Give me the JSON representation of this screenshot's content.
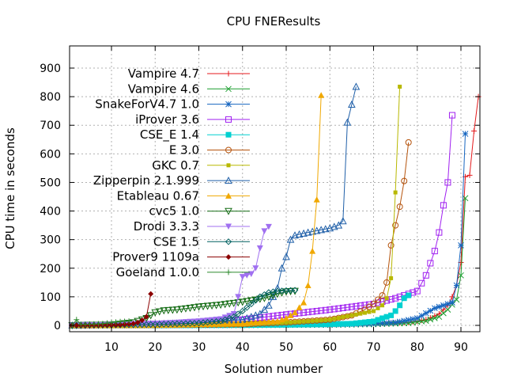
{
  "chart_data": {
    "type": "line",
    "title": "CPU FNEResults",
    "xlabel": "Solution number",
    "ylabel": "CPU time in seconds",
    "xlim": [
      0,
      95
    ],
    "ylim": [
      -20,
      980
    ],
    "xticks": [
      10,
      20,
      30,
      40,
      50,
      60,
      70,
      80,
      90
    ],
    "yticks": [
      0,
      100,
      200,
      300,
      400,
      500,
      600,
      700,
      800,
      900
    ],
    "grid": true,
    "legend_position": "top-left",
    "series": [
      {
        "name": "Vampire 4.7",
        "color": "#e41a1c",
        "marker": "plus",
        "points": [
          [
            1,
            0
          ],
          [
            20,
            0
          ],
          [
            40,
            1
          ],
          [
            60,
            3
          ],
          [
            70,
            6
          ],
          [
            78,
            10
          ],
          [
            82,
            20
          ],
          [
            85,
            40
          ],
          [
            87,
            70
          ],
          [
            88,
            100
          ],
          [
            89,
            140
          ],
          [
            90,
            220
          ],
          [
            91,
            520
          ],
          [
            92,
            525
          ],
          [
            93,
            680
          ],
          [
            94,
            800
          ]
        ]
      },
      {
        "name": "Vampire 4.6",
        "color": "#1a9e2e",
        "marker": "x",
        "points": [
          [
            1,
            0
          ],
          [
            20,
            0
          ],
          [
            40,
            1
          ],
          [
            60,
            2
          ],
          [
            70,
            4
          ],
          [
            78,
            8
          ],
          [
            82,
            16
          ],
          [
            85,
            30
          ],
          [
            87,
            55
          ],
          [
            89,
            90
          ],
          [
            90,
            175
          ],
          [
            91,
            445
          ]
        ]
      },
      {
        "name": "SnakeForV4.7 1.0",
        "color": "#1565c0",
        "marker": "asterisk",
        "points": [
          [
            1,
            0
          ],
          [
            20,
            0
          ],
          [
            40,
            1
          ],
          [
            60,
            3
          ],
          [
            70,
            6
          ],
          [
            75,
            10
          ],
          [
            80,
            25
          ],
          [
            84,
            60
          ],
          [
            86,
            70
          ],
          [
            88,
            80
          ],
          [
            89,
            140
          ],
          [
            90,
            280
          ],
          [
            91,
            670
          ]
        ]
      },
      {
        "name": "iProver 3.6",
        "color": "#a020f0",
        "marker": "square",
        "points": [
          [
            1,
            0
          ],
          [
            10,
            2
          ],
          [
            20,
            5
          ],
          [
            30,
            10
          ],
          [
            40,
            20
          ],
          [
            50,
            38
          ],
          [
            60,
            55
          ],
          [
            65,
            65
          ],
          [
            70,
            75
          ],
          [
            75,
            95
          ],
          [
            78,
            110
          ],
          [
            80,
            120
          ],
          [
            82,
            175
          ],
          [
            84,
            260
          ],
          [
            85,
            325
          ],
          [
            86,
            420
          ],
          [
            87,
            500
          ],
          [
            88,
            735
          ]
        ]
      },
      {
        "name": "CSE_E 1.4",
        "color": "#00d0d0",
        "marker": "filled-square",
        "points": [
          [
            1,
            0
          ],
          [
            20,
            0
          ],
          [
            40,
            1
          ],
          [
            50,
            2
          ],
          [
            60,
            4
          ],
          [
            65,
            6
          ],
          [
            70,
            14
          ],
          [
            72,
            25
          ],
          [
            74,
            35
          ],
          [
            75,
            50
          ],
          [
            76,
            70
          ],
          [
            77,
            95
          ],
          [
            78,
            105
          ]
        ]
      },
      {
        "name": "E 3.0",
        "color": "#b5530c",
        "marker": "circle",
        "points": [
          [
            1,
            0
          ],
          [
            20,
            1
          ],
          [
            40,
            4
          ],
          [
            50,
            10
          ],
          [
            60,
            20
          ],
          [
            65,
            35
          ],
          [
            68,
            55
          ],
          [
            70,
            75
          ],
          [
            72,
            105
          ],
          [
            73,
            150
          ],
          [
            74,
            280
          ],
          [
            75,
            350
          ],
          [
            76,
            415
          ],
          [
            77,
            505
          ],
          [
            78,
            640
          ]
        ]
      },
      {
        "name": "GKC 0.7",
        "color": "#b8b800",
        "marker": "filled-square-small",
        "points": [
          [
            1,
            0
          ],
          [
            20,
            1
          ],
          [
            30,
            2
          ],
          [
            40,
            5
          ],
          [
            50,
            10
          ],
          [
            60,
            20
          ],
          [
            65,
            35
          ],
          [
            70,
            50
          ],
          [
            72,
            70
          ],
          [
            73,
            95
          ],
          [
            74,
            165
          ],
          [
            75,
            465
          ],
          [
            76,
            835
          ]
        ]
      },
      {
        "name": "Zipperpin 2.1.999",
        "color": "#1f5fa8",
        "marker": "triangle",
        "points": [
          [
            1,
            0
          ],
          [
            10,
            3
          ],
          [
            20,
            5
          ],
          [
            30,
            10
          ],
          [
            40,
            20
          ],
          [
            44,
            40
          ],
          [
            46,
            70
          ],
          [
            47,
            100
          ],
          [
            48,
            130
          ],
          [
            49,
            200
          ],
          [
            50,
            240
          ],
          [
            51,
            300
          ],
          [
            52,
            315
          ],
          [
            55,
            325
          ],
          [
            60,
            340
          ],
          [
            62,
            350
          ],
          [
            63,
            365
          ],
          [
            64,
            710
          ],
          [
            66,
            835
          ]
        ]
      },
      {
        "name": "Etableau 0.67",
        "color": "#f0a800",
        "marker": "filled-triangle",
        "points": [
          [
            1,
            0
          ],
          [
            20,
            1
          ],
          [
            40,
            6
          ],
          [
            48,
            15
          ],
          [
            50,
            25
          ],
          [
            52,
            45
          ],
          [
            54,
            80
          ],
          [
            55,
            140
          ],
          [
            56,
            260
          ],
          [
            57,
            440
          ],
          [
            58,
            805
          ]
        ]
      },
      {
        "name": "cvc5 1.0",
        "color": "#136b13",
        "marker": "triangle-down",
        "points": [
          [
            1,
            0
          ],
          [
            10,
            2
          ],
          [
            15,
            10
          ],
          [
            18,
            25
          ],
          [
            20,
            45
          ],
          [
            22,
            52
          ],
          [
            25,
            55
          ],
          [
            30,
            65
          ],
          [
            35,
            72
          ],
          [
            40,
            82
          ],
          [
            45,
            95
          ],
          [
            48,
            110
          ],
          [
            50,
            118
          ],
          [
            52,
            120
          ]
        ]
      },
      {
        "name": "Drodi 3.3.3",
        "color": "#a070f0",
        "marker": "filled-triangle-down",
        "points": [
          [
            1,
            0
          ],
          [
            10,
            2
          ],
          [
            20,
            6
          ],
          [
            25,
            10
          ],
          [
            30,
            15
          ],
          [
            35,
            22
          ],
          [
            38,
            40
          ],
          [
            39,
            100
          ],
          [
            40,
            170
          ],
          [
            42,
            180
          ],
          [
            43,
            200
          ],
          [
            44,
            270
          ],
          [
            45,
            330
          ],
          [
            46,
            345
          ]
        ]
      },
      {
        "name": "CSE 1.5",
        "color": "#006060",
        "marker": "diamond",
        "points": [
          [
            1,
            0
          ],
          [
            10,
            1
          ],
          [
            20,
            3
          ],
          [
            30,
            8
          ],
          [
            35,
            15
          ],
          [
            38,
            30
          ],
          [
            40,
            50
          ],
          [
            42,
            75
          ],
          [
            44,
            100
          ],
          [
            46,
            115
          ],
          [
            48,
            120
          ],
          [
            52,
            123
          ]
        ]
      },
      {
        "name": "Prover9 1109a",
        "color": "#8b0000",
        "marker": "filled-diamond",
        "points": [
          [
            1,
            0
          ],
          [
            8,
            1
          ],
          [
            12,
            2
          ],
          [
            15,
            6
          ],
          [
            16,
            10
          ],
          [
            17,
            18
          ],
          [
            18,
            30
          ],
          [
            19,
            110
          ]
        ]
      },
      {
        "name": "Goeland 1.0.0",
        "color": "#2d8a2d",
        "marker": "plus",
        "points": [
          [
            1,
            0
          ],
          [
            2,
            20
          ],
          [
            3,
            3
          ],
          [
            5,
            4
          ],
          [
            8,
            6
          ],
          [
            10,
            10
          ],
          [
            12,
            13
          ],
          [
            14,
            15
          ]
        ]
      }
    ]
  }
}
